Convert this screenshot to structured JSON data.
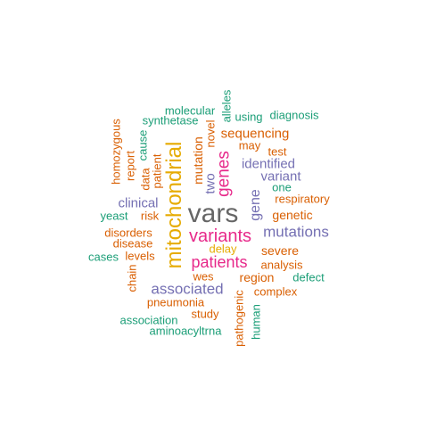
{
  "palette": {
    "orange": "#D95F02",
    "teal": "#1B9E77",
    "purple": "#7570B3",
    "magenta": "#E7298A",
    "gold": "#E6AB02",
    "olive": "#66A61E",
    "gray": "#666666"
  },
  "words": [
    {
      "text": "vars",
      "color": "gray"
    },
    {
      "text": "mitochondrial",
      "color": "gold"
    },
    {
      "text": "variants",
      "color": "magenta"
    },
    {
      "text": "patients",
      "color": "magenta"
    },
    {
      "text": "genes",
      "color": "magenta"
    },
    {
      "text": "associated",
      "color": "purple"
    },
    {
      "text": "mutations",
      "color": "purple"
    },
    {
      "text": "gene",
      "color": "purple"
    },
    {
      "text": "sequencing",
      "color": "orange"
    },
    {
      "text": "identified",
      "color": "purple"
    },
    {
      "text": "variant",
      "color": "purple"
    },
    {
      "text": "clinical",
      "color": "purple"
    },
    {
      "text": "two",
      "color": "purple"
    },
    {
      "text": "mutation",
      "color": "orange"
    },
    {
      "text": "genetic",
      "color": "orange"
    },
    {
      "text": "severe",
      "color": "orange"
    },
    {
      "text": "region",
      "color": "orange"
    },
    {
      "text": "respiratory",
      "color": "orange"
    },
    {
      "text": "analysis",
      "color": "orange"
    },
    {
      "text": "disorders",
      "color": "orange"
    },
    {
      "text": "disease",
      "color": "orange"
    },
    {
      "text": "levels",
      "color": "orange"
    },
    {
      "text": "risk",
      "color": "orange"
    },
    {
      "text": "patient",
      "color": "orange"
    },
    {
      "text": "data",
      "color": "orange"
    },
    {
      "text": "report",
      "color": "orange"
    },
    {
      "text": "homozygous",
      "color": "orange"
    },
    {
      "text": "novel",
      "color": "orange"
    },
    {
      "text": "may",
      "color": "orange"
    },
    {
      "text": "test",
      "color": "orange"
    },
    {
      "text": "delay",
      "color": "gold"
    },
    {
      "text": "wes",
      "color": "orange"
    },
    {
      "text": "complex",
      "color": "orange"
    },
    {
      "text": "pneumonia",
      "color": "orange"
    },
    {
      "text": "study",
      "color": "orange"
    },
    {
      "text": "pathogenic",
      "color": "orange"
    },
    {
      "text": "chain",
      "color": "orange"
    },
    {
      "text": "molecular",
      "color": "teal"
    },
    {
      "text": "synthetase",
      "color": "teal"
    },
    {
      "text": "alleles",
      "color": "teal"
    },
    {
      "text": "using",
      "color": "teal"
    },
    {
      "text": "diagnosis",
      "color": "teal"
    },
    {
      "text": "cause",
      "color": "teal"
    },
    {
      "text": "one",
      "color": "teal"
    },
    {
      "text": "yeast",
      "color": "teal"
    },
    {
      "text": "cases",
      "color": "teal"
    },
    {
      "text": "defect",
      "color": "teal"
    },
    {
      "text": "human",
      "color": "teal"
    },
    {
      "text": "association",
      "color": "teal"
    },
    {
      "text": "aminoacyltrna",
      "color": "teal"
    }
  ]
}
